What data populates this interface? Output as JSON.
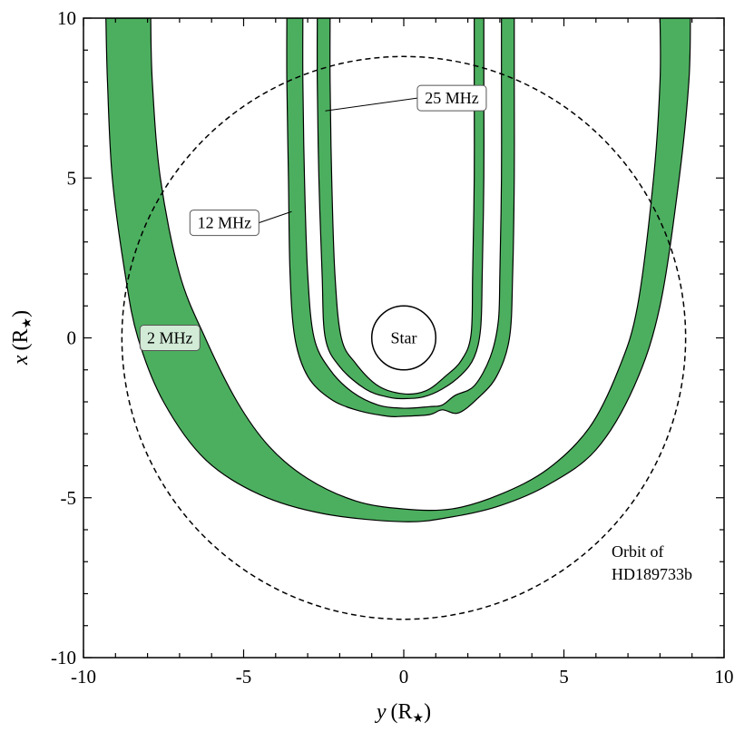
{
  "chart_data": {
    "type": "line",
    "xlabel": "y (R★)",
    "ylabel": "x (R★)",
    "xlim": [
      -10,
      10
    ],
    "ylim": [
      -10,
      10
    ],
    "xticks": [
      "-10",
      "-5",
      "0",
      "5",
      "10"
    ],
    "yticks": [
      "-10",
      "-5",
      "0",
      "5",
      "10"
    ],
    "x_label_var": "y",
    "x_label_unit": "(R",
    "y_label_var": "x",
    "y_label_unit": "(R",
    "label_star_symbol": "★",
    "label_close": ")",
    "grid": false,
    "series": [
      {
        "name": "2 MHz",
        "outer": [
          [
            -9.3,
            10
          ],
          [
            -9.25,
            8
          ],
          [
            -9.1,
            5
          ],
          [
            -8.7,
            2
          ],
          [
            -8.3,
            0
          ],
          [
            -7.5,
            -2
          ],
          [
            -6.2,
            -3.8
          ],
          [
            -4.5,
            -4.9
          ],
          [
            -2.5,
            -5.5
          ],
          [
            0,
            -5.75
          ],
          [
            1.5,
            -5.6
          ],
          [
            3,
            -5.25
          ],
          [
            4.5,
            -4.6
          ],
          [
            6,
            -3.5
          ],
          [
            7.2,
            -1.5
          ],
          [
            8,
            1
          ],
          [
            8.6,
            5
          ],
          [
            8.9,
            8
          ],
          [
            8.95,
            10
          ]
        ],
        "inner": [
          [
            -7.9,
            10
          ],
          [
            -7.85,
            8
          ],
          [
            -7.6,
            5
          ],
          [
            -7.0,
            2
          ],
          [
            -6.2,
            0
          ],
          [
            -5.2,
            -2
          ],
          [
            -4.2,
            -3.4
          ],
          [
            -3.0,
            -4.4
          ],
          [
            -1.5,
            -5.1
          ],
          [
            0,
            -5.35
          ],
          [
            1.5,
            -5.35
          ],
          [
            3,
            -4.9
          ],
          [
            4.5,
            -4.1
          ],
          [
            5.8,
            -2.8
          ],
          [
            6.7,
            -1
          ],
          [
            7.3,
            1
          ],
          [
            7.8,
            5
          ],
          [
            8.0,
            8
          ],
          [
            8.0,
            10
          ]
        ]
      },
      {
        "name": "12 MHz",
        "outer": [
          [
            -3.65,
            10
          ],
          [
            -3.65,
            8
          ],
          [
            -3.6,
            5
          ],
          [
            -3.55,
            2
          ],
          [
            -3.4,
            0
          ],
          [
            -3.0,
            -1.2
          ],
          [
            -2.3,
            -1.9
          ],
          [
            -1.5,
            -2.25
          ],
          [
            -0.5,
            -2.45
          ],
          [
            0,
            -2.45
          ],
          [
            0.8,
            -2.4
          ],
          [
            1.2,
            -2.25
          ],
          [
            1.7,
            -2.35
          ],
          [
            2.3,
            -1.9
          ],
          [
            2.9,
            -1.2
          ],
          [
            3.3,
            0
          ],
          [
            3.4,
            2
          ],
          [
            3.45,
            5
          ],
          [
            3.45,
            8
          ],
          [
            3.45,
            10
          ]
        ],
        "inner": [
          [
            -3.15,
            10
          ],
          [
            -3.15,
            8
          ],
          [
            -3.1,
            5
          ],
          [
            -3.0,
            2
          ],
          [
            -2.8,
            0
          ],
          [
            -2.3,
            -1.0
          ],
          [
            -1.6,
            -1.7
          ],
          [
            -0.8,
            -2.1
          ],
          [
            0,
            -2.2
          ],
          [
            0.8,
            -2.15
          ],
          [
            1.2,
            -2.1
          ],
          [
            1.6,
            -1.8
          ],
          [
            2.2,
            -1.5
          ],
          [
            2.7,
            -0.6
          ],
          [
            2.95,
            0.5
          ],
          [
            3.0,
            2
          ],
          [
            3.05,
            5
          ],
          [
            3.05,
            8
          ],
          [
            3.05,
            10
          ]
        ]
      },
      {
        "name": "25 MHz",
        "outer": [
          [
            -2.7,
            10
          ],
          [
            -2.7,
            8
          ],
          [
            -2.65,
            5
          ],
          [
            -2.55,
            2
          ],
          [
            -2.45,
            0
          ],
          [
            -2.0,
            -0.9
          ],
          [
            -1.2,
            -1.6
          ],
          [
            -0.5,
            -1.85
          ],
          [
            0,
            -1.9
          ],
          [
            0.6,
            -1.85
          ],
          [
            1.2,
            -1.6
          ],
          [
            1.8,
            -1.15
          ],
          [
            2.2,
            -0.6
          ],
          [
            2.4,
            0.3
          ],
          [
            2.45,
            2
          ],
          [
            2.5,
            5
          ],
          [
            2.5,
            8
          ],
          [
            2.5,
            10
          ]
        ],
        "inner": [
          [
            -2.3,
            10
          ],
          [
            -2.3,
            8
          ],
          [
            -2.25,
            5
          ],
          [
            -2.15,
            2
          ],
          [
            -1.95,
            0
          ],
          [
            -1.5,
            -0.8
          ],
          [
            -0.8,
            -1.5
          ],
          [
            0,
            -1.75
          ],
          [
            0.7,
            -1.65
          ],
          [
            1.3,
            -1.2
          ],
          [
            1.8,
            -0.7
          ],
          [
            2.1,
            0.1
          ],
          [
            2.15,
            2
          ],
          [
            2.2,
            5
          ],
          [
            2.2,
            8
          ],
          [
            2.2,
            10
          ]
        ]
      }
    ],
    "orbit": {
      "center": [
        0,
        0
      ],
      "radius_y": 8.8,
      "radius_x": 8.8,
      "label_line1": "Orbit of",
      "label_line2": "HD189733b"
    },
    "star": {
      "center": [
        0,
        0
      ],
      "radius": 1.0,
      "label": "Star"
    },
    "annotations": [
      {
        "text": "25 MHz",
        "box_at": [
          1.5,
          7.5
        ],
        "leader_to": [
          -2.45,
          7.1
        ]
      },
      {
        "text": "12 MHz",
        "box_at": [
          -5.6,
          3.6
        ],
        "leader_to": [
          -3.5,
          3.95
        ]
      },
      {
        "text": "2 MHz",
        "box_at": [
          -7.3,
          0
        ],
        "leader_to": null
      }
    ]
  }
}
